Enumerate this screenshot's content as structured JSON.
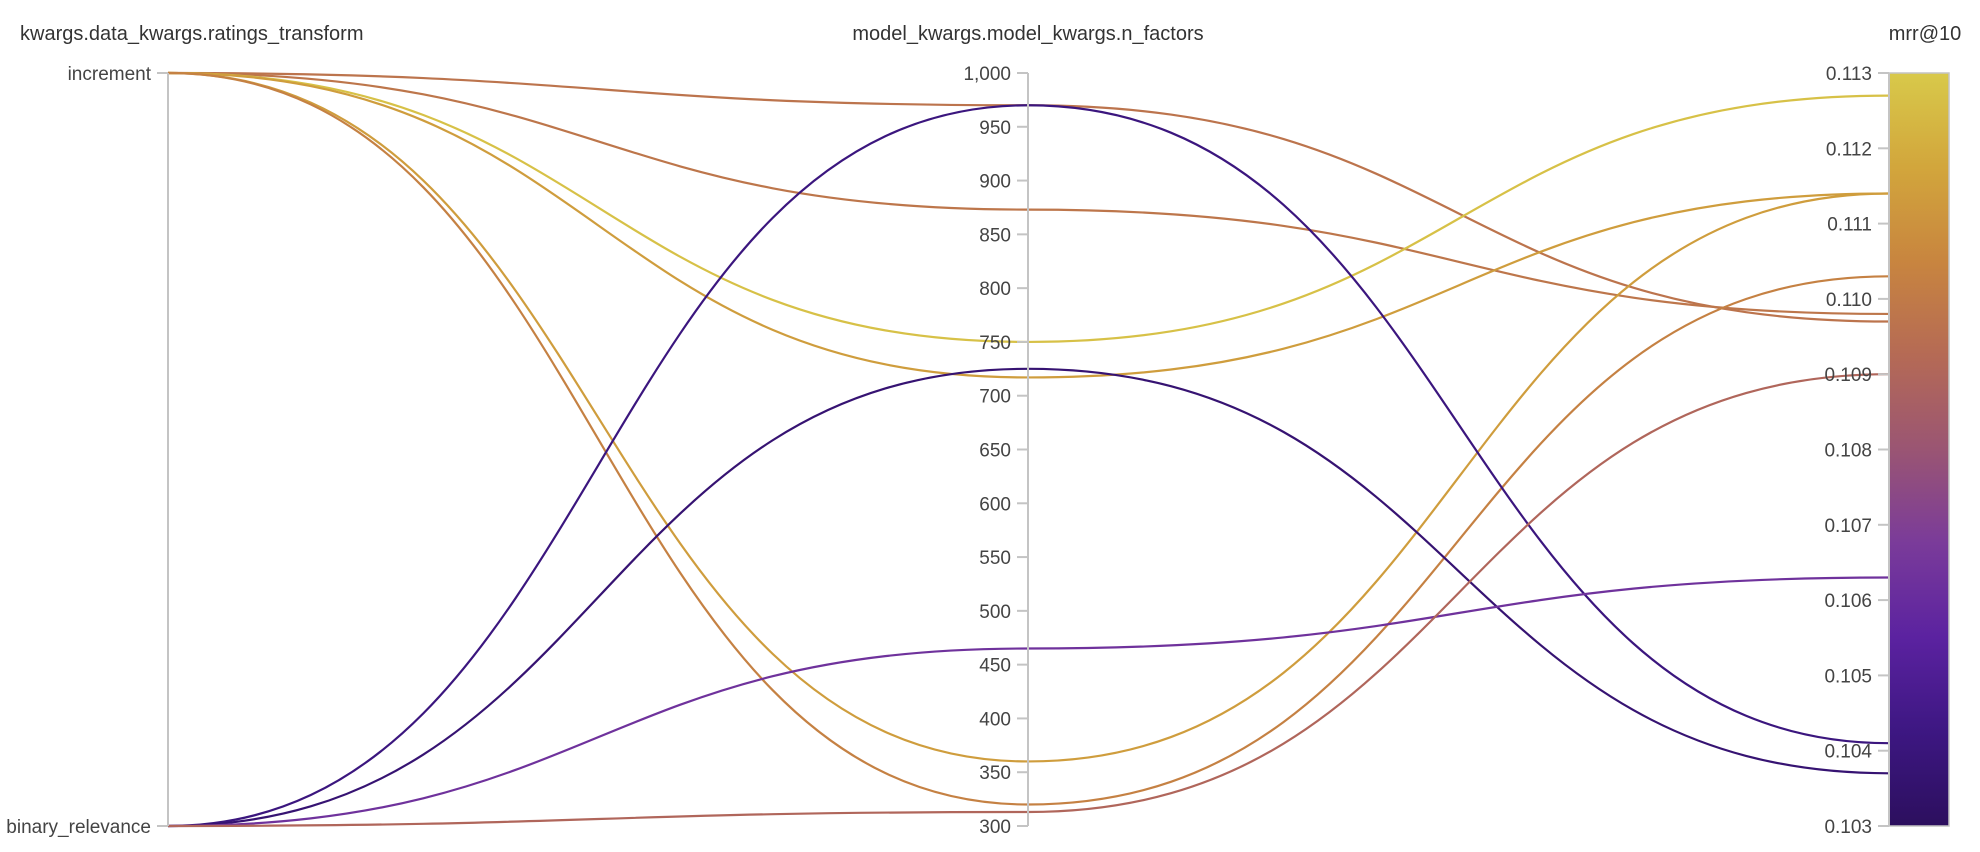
{
  "chart_data": {
    "type": "parallel_coordinates",
    "axes": [
      {
        "name": "ratings_transform",
        "title": "kwargs.data_kwargs.ratings_transform",
        "kind": "categorical",
        "categories": [
          "increment",
          "binary_relevance"
        ]
      },
      {
        "name": "n_factors",
        "title": "model_kwargs.model_kwargs.n_factors",
        "kind": "numeric",
        "range": [
          300,
          1000
        ],
        "ticks": [
          300,
          350,
          400,
          450,
          500,
          550,
          600,
          650,
          700,
          750,
          800,
          850,
          900,
          950,
          1000
        ],
        "tick_labels": [
          "300",
          "350",
          "400",
          "450",
          "500",
          "550",
          "600",
          "650",
          "700",
          "750",
          "800",
          "850",
          "900",
          "950",
          "1,000"
        ]
      },
      {
        "name": "mrr10",
        "title": "mrr@10",
        "kind": "numeric",
        "range": [
          0.103,
          0.113
        ],
        "ticks": [
          0.103,
          0.104,
          0.105,
          0.106,
          0.107,
          0.108,
          0.109,
          0.11,
          0.111,
          0.112,
          0.113
        ],
        "tick_labels": [
          "0.103",
          "0.104",
          "0.105",
          "0.106",
          "0.107",
          "0.108",
          "0.109",
          "0.110",
          "0.111",
          "0.112",
          "0.113"
        ],
        "colorbar": true
      }
    ],
    "colorscale": [
      "#2c0f5e",
      "#3d1782",
      "#5b22a0",
      "#7a3b9a",
      "#9a5573",
      "#b56a55",
      "#c8853f",
      "#d2a63c",
      "#d8c94a"
    ],
    "runs": [
      {
        "ratings_transform": "increment",
        "n_factors": 970,
        "mrr10": 0.1097
      },
      {
        "ratings_transform": "increment",
        "n_factors": 873,
        "mrr10": 0.1098
      },
      {
        "ratings_transform": "increment",
        "n_factors": 750,
        "mrr10": 0.1127
      },
      {
        "ratings_transform": "increment",
        "n_factors": 717,
        "mrr10": 0.1114
      },
      {
        "ratings_transform": "increment",
        "n_factors": 360,
        "mrr10": 0.1114
      },
      {
        "ratings_transform": "increment",
        "n_factors": 320,
        "mrr10": 0.1103
      },
      {
        "ratings_transform": "binary_relevance",
        "n_factors": 970,
        "mrr10": 0.1041
      },
      {
        "ratings_transform": "binary_relevance",
        "n_factors": 725,
        "mrr10": 0.1037
      },
      {
        "ratings_transform": "binary_relevance",
        "n_factors": 465,
        "mrr10": 0.1063
      },
      {
        "ratings_transform": "binary_relevance",
        "n_factors": 313,
        "mrr10": 0.109
      }
    ]
  }
}
